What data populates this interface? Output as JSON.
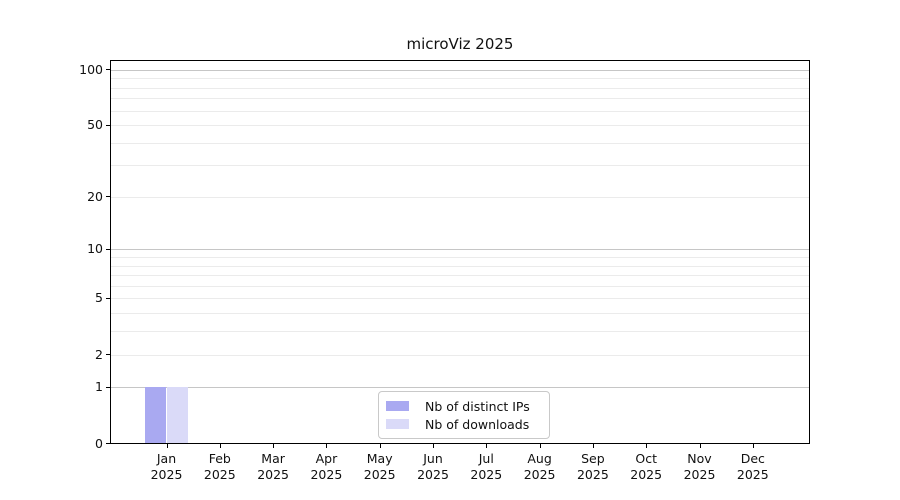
{
  "chart_data": {
    "type": "bar",
    "title": "microViz 2025",
    "categories": [
      {
        "month": "Jan",
        "year": "2025"
      },
      {
        "month": "Feb",
        "year": "2025"
      },
      {
        "month": "Mar",
        "year": "2025"
      },
      {
        "month": "Apr",
        "year": "2025"
      },
      {
        "month": "May",
        "year": "2025"
      },
      {
        "month": "Jun",
        "year": "2025"
      },
      {
        "month": "Jul",
        "year": "2025"
      },
      {
        "month": "Aug",
        "year": "2025"
      },
      {
        "month": "Sep",
        "year": "2025"
      },
      {
        "month": "Oct",
        "year": "2025"
      },
      {
        "month": "Nov",
        "year": "2025"
      },
      {
        "month": "Dec",
        "year": "2025"
      }
    ],
    "series": [
      {
        "name": "Nb of distinct IPs",
        "color": "#a9a9f1",
        "values": [
          1,
          0,
          0,
          0,
          0,
          0,
          0,
          0,
          0,
          0,
          0,
          0
        ]
      },
      {
        "name": "Nb of downloads",
        "color": "#dadaf8",
        "values": [
          1,
          0,
          0,
          0,
          0,
          0,
          0,
          0,
          0,
          0,
          0,
          0
        ]
      }
    ],
    "xlabel": "",
    "ylabel": "",
    "yscale": "log1p",
    "ylim": [
      0,
      113
    ],
    "yticks": [
      0,
      1,
      2,
      5,
      10,
      20,
      50,
      100
    ],
    "gridlines": {
      "major": [
        1,
        10,
        100
      ],
      "minor": [
        2,
        3,
        4,
        5,
        6,
        7,
        8,
        9,
        20,
        30,
        40,
        50,
        60,
        70,
        80,
        90
      ]
    },
    "grid": true,
    "legend_position": "lower center",
    "colors": {
      "major_grid": "#c6c6c6",
      "minor_grid": "#ebebeb",
      "axis": "#000000",
      "text": "#1a1a1a"
    }
  }
}
